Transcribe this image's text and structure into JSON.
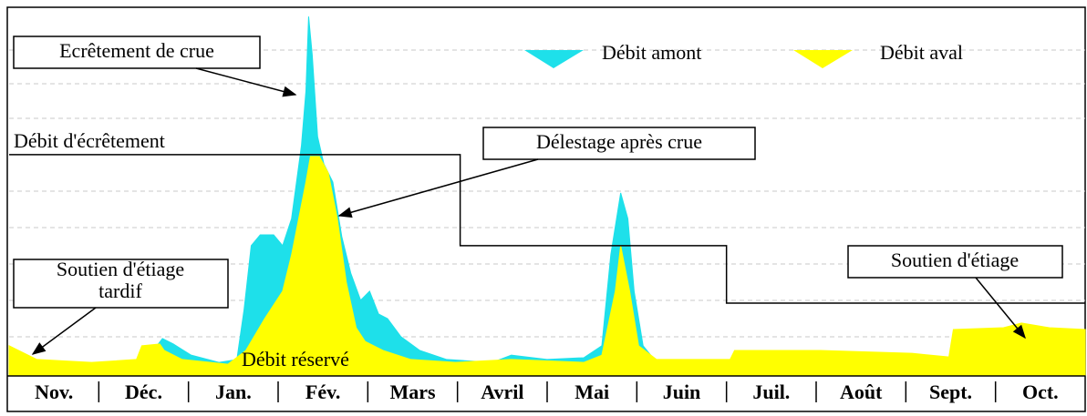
{
  "chart_data": {
    "type": "area",
    "categories": [
      "Nov.",
      "Déc.",
      "Jan.",
      "Fév.",
      "Mars",
      "Avril",
      "Mai",
      "Juin",
      "Juil.",
      "Août",
      "Sept.",
      "Oct."
    ],
    "xlim": [
      0,
      12
    ],
    "ylim": [
      0,
      100
    ],
    "series": [
      {
        "name": "Débit amont",
        "color": "#1ee0ea",
        "x": [
          0,
          0.92,
          1.42,
          1.53,
          1.71,
          1.83,
          2.03,
          2.34,
          2.54,
          2.62,
          2.7,
          2.8,
          2.95,
          3.05,
          3.15,
          3.26,
          3.31,
          3.34,
          3.38,
          3.44,
          3.51,
          3.61,
          3.71,
          3.81,
          3.92,
          4.02,
          4.12,
          4.22,
          4.37,
          4.58,
          4.88,
          5.39,
          5.6,
          6.0,
          6.41,
          6.61,
          6.71,
          6.82,
          6.9,
          6.97,
          7.07,
          7.22,
          8.04,
          9.05,
          10.07,
          11.09,
          12.0
        ],
        "values": [
          1.8,
          1.0,
          1.8,
          4.3,
          10.1,
          8.6,
          5.5,
          3.5,
          4.3,
          18.1,
          35.8,
          38.8,
          38.8,
          35.8,
          43.3,
          63.5,
          78.6,
          99.2,
          88.7,
          66.0,
          58.4,
          53.4,
          38.3,
          28.2,
          20.7,
          23.2,
          16.9,
          15.6,
          10.6,
          6.8,
          4.3,
          3.5,
          5.5,
          4.3,
          4.8,
          8.1,
          33.3,
          50.4,
          43.3,
          23.2,
          8.1,
          3.5,
          3.0,
          1.8,
          1.3,
          1.8,
          2.3
        ]
      },
      {
        "name": "Débit aval",
        "color": "#ffff00",
        "x": [
          0,
          0.31,
          0.92,
          1.42,
          1.48,
          1.68,
          1.73,
          1.93,
          2.44,
          2.64,
          2.85,
          3.05,
          3.15,
          3.31,
          3.36,
          3.46,
          3.56,
          3.66,
          3.76,
          3.87,
          3.97,
          4.17,
          4.48,
          4.98,
          5.6,
          6.41,
          6.61,
          6.76,
          6.82,
          6.92,
          7.02,
          7.22,
          8.04,
          8.09,
          9.05,
          10.07,
          10.48,
          10.53,
          11.09,
          11.29,
          11.6,
          12.0
        ],
        "values": [
          8.1,
          4.3,
          3.5,
          4.3,
          8.1,
          8.6,
          6.8,
          4.3,
          3.0,
          6.8,
          15.6,
          23.2,
          33.3,
          53.4,
          60.5,
          60.5,
          55.9,
          43.3,
          25.7,
          13.1,
          9.3,
          6.8,
          4.3,
          3.5,
          4.3,
          3.5,
          5.5,
          23.2,
          35.8,
          23.2,
          8.1,
          4.3,
          4.3,
          6.8,
          6.8,
          6.0,
          5.0,
          12.6,
          13.1,
          14.4,
          13.1,
          12.6
        ]
      }
    ],
    "step_line": {
      "x": [
        0,
        5.03,
        5.03,
        8.0,
        8.0,
        12.0
      ],
      "values": [
        61.0,
        61.0,
        35.8,
        35.8,
        19.9,
        19.9
      ]
    },
    "annotations": {
      "crue": "Ecrêtement de crue",
      "seuil": "Débit d'écrêtement",
      "delestage": "Délestage après crue",
      "tardif": [
        "Soutien d'étiage",
        "tardif"
      ],
      "soutien": "Soutien d'étiage",
      "reserve": "Débit réservé"
    }
  }
}
